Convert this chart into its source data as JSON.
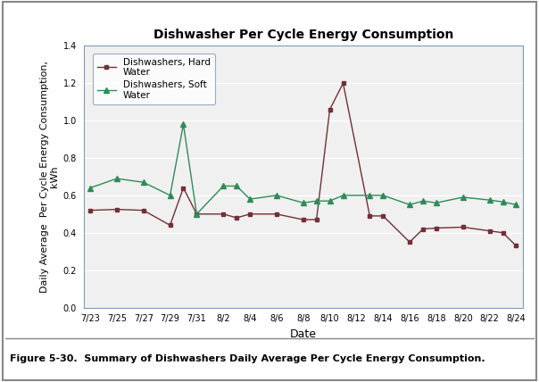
{
  "title": "Dishwasher Per Cycle Energy Consumption",
  "xlabel": "Date",
  "ylabel": "Daily Average  Per Cycle Energy Consumption,\nkWh",
  "caption": "Figure 5-30.  Summary of Dishwashers Daily Average Per Cycle Energy Consumption.",
  "x_labels": [
    "7/23",
    "7/25",
    "7/27",
    "7/29",
    "7/31",
    "8/2",
    "8/4",
    "8/6",
    "8/8",
    "8/10",
    "8/12",
    "8/14",
    "8/16",
    "8/18",
    "8/20",
    "8/22",
    "8/24"
  ],
  "hard_label": "Dishwashers, Hard\nWater",
  "soft_label": "Dishwashers, Soft\nWater",
  "hard_color": "#722F37",
  "soft_color": "#2E8B57",
  "ylim_min": 0,
  "ylim_max": 1.4,
  "yticks": [
    0,
    0.2,
    0.4,
    0.6,
    0.8,
    1.0,
    1.2,
    1.4
  ],
  "hard_x": [
    0,
    2,
    4,
    6,
    7,
    8,
    10,
    11,
    12,
    14,
    16,
    17,
    18,
    19,
    21,
    22,
    24,
    25,
    26,
    28,
    30,
    31,
    32
  ],
  "hard_y": [
    0.52,
    0.525,
    0.52,
    0.44,
    0.64,
    0.5,
    0.5,
    0.48,
    0.5,
    0.5,
    0.47,
    0.47,
    1.06,
    1.2,
    0.49,
    0.49,
    0.35,
    0.42,
    0.425,
    0.43,
    0.41,
    0.4,
    0.33
  ],
  "soft_x": [
    0,
    2,
    4,
    6,
    7,
    8,
    10,
    11,
    12,
    14,
    16,
    17,
    18,
    19,
    21,
    22,
    24,
    25,
    26,
    28,
    30,
    31,
    32
  ],
  "soft_y": [
    0.64,
    0.69,
    0.67,
    0.6,
    0.98,
    0.5,
    0.65,
    0.65,
    0.58,
    0.6,
    0.56,
    0.57,
    0.57,
    0.6,
    0.6,
    0.6,
    0.55,
    0.57,
    0.56,
    0.59,
    0.575,
    0.565,
    0.55
  ],
  "fig_border_color": "#aaaaaa",
  "plot_bg": "#f0f0f0",
  "grid_color": "white",
  "spine_color": "#7f9db9",
  "title_fontsize": 10,
  "axis_label_fontsize": 8,
  "tick_fontsize": 7,
  "caption_fontsize": 8,
  "legend_fontsize": 7.5
}
